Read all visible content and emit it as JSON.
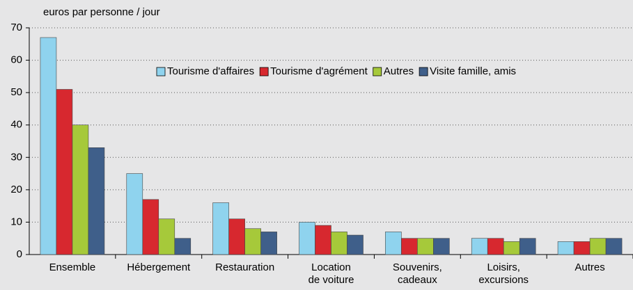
{
  "chart_data": {
    "type": "bar",
    "y_axis_label": "euros par personne / jour",
    "categories": [
      "Ensemble",
      "Hébergement",
      "Restauration",
      "Location\nde voiture",
      "Souvenirs,\ncadeaux",
      "Loisirs,\nexcursions",
      "Autres"
    ],
    "series": [
      {
        "name": "Tourisme d'affaires",
        "color": "#8fd3ee",
        "values": [
          67,
          25,
          16,
          10,
          7,
          5,
          4
        ]
      },
      {
        "name": "Tourisme d'agrément",
        "color": "#d7282f",
        "values": [
          51,
          17,
          11,
          9,
          5,
          5,
          4
        ]
      },
      {
        "name": "Autres",
        "color": "#a6c93a",
        "values": [
          40,
          11,
          8,
          7,
          5,
          4,
          5
        ]
      },
      {
        "name": "Visite famille, amis",
        "color": "#3f5f8a",
        "values": [
          33,
          5,
          7,
          6,
          5,
          5,
          5
        ]
      }
    ],
    "ylim": [
      0,
      70
    ],
    "yticks": [
      0,
      10,
      20,
      30,
      40,
      50,
      60,
      70
    ],
    "grid": true
  }
}
